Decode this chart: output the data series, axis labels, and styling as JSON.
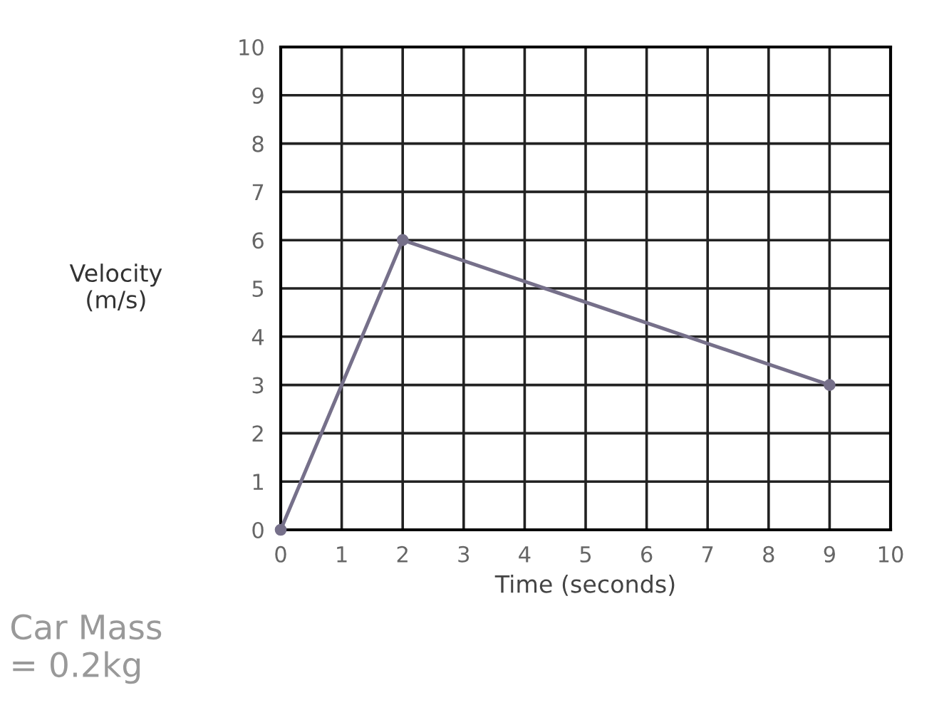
{
  "chart_data": {
    "type": "line",
    "xlabel": "Time (seconds)",
    "ylabel": "Velocity\n(m/s)",
    "x": [
      0,
      2,
      9
    ],
    "series": [
      {
        "color": "#76708a",
        "values": [
          0,
          6,
          3
        ]
      }
    ],
    "xlim": [
      0,
      10
    ],
    "ylim": [
      0,
      10
    ],
    "xticks": [
      0,
      1,
      2,
      3,
      4,
      5,
      6,
      7,
      8,
      9,
      10
    ],
    "yticks": [
      0,
      1,
      2,
      3,
      4,
      5,
      6,
      7,
      8,
      9,
      10
    ],
    "grid": true,
    "marker": "circle",
    "line_style": "solid",
    "annotations": [
      "Car Mass\n= 0.2kg"
    ]
  }
}
